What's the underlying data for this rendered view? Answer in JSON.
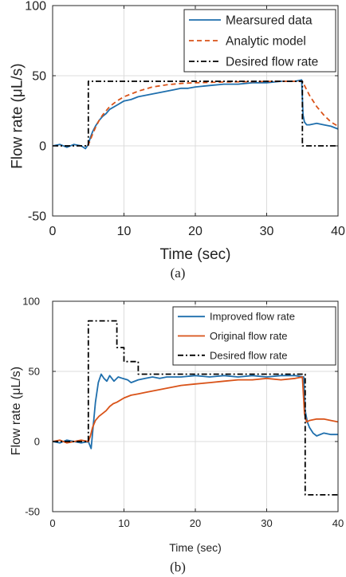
{
  "chart_data": [
    {
      "type": "line",
      "caption": "(a)",
      "xlabel": "Time (sec)",
      "ylabel": "Flow rate (μL/s)",
      "xlim": [
        0,
        40
      ],
      "ylim": [
        -50,
        100
      ],
      "xticks": [
        0,
        10,
        20,
        30,
        40
      ],
      "yticks": [
        -50,
        0,
        50,
        100
      ],
      "grid": true,
      "legend_position": "top-right",
      "series": [
        {
          "name": "Mearsured data",
          "color": "#1f6fad",
          "style": "solid",
          "x": [
            0,
            1,
            2,
            3,
            4,
            4.6,
            5,
            5.3,
            5.6,
            6,
            6.5,
            7,
            7.5,
            8,
            9,
            10,
            11,
            12,
            13,
            14,
            15,
            16,
            17,
            18,
            19,
            20,
            22,
            24,
            26,
            28,
            30,
            32,
            34,
            34.9,
            35.1,
            35.3,
            35.6,
            36,
            37,
            38,
            39,
            40
          ],
          "y": [
            0,
            1,
            -1,
            1,
            0,
            -2,
            1,
            6,
            10,
            14,
            18,
            21,
            23,
            26,
            29,
            32,
            33,
            35,
            36,
            37,
            38,
            39,
            40,
            41,
            41,
            42,
            43,
            44,
            44,
            45,
            45,
            46,
            46,
            47,
            22,
            17,
            15,
            15,
            16,
            15,
            14,
            12
          ]
        },
        {
          "name": "Analytic model",
          "color": "#d95319",
          "style": "dashed",
          "x": [
            4.9,
            5.2,
            5.5,
            6,
            6.5,
            7,
            8,
            9,
            10,
            11,
            12,
            14,
            16,
            18,
            20,
            24,
            28,
            32,
            35,
            35.5,
            36,
            37,
            38,
            39,
            40
          ],
          "y": [
            0,
            3,
            7,
            13,
            18,
            22,
            28,
            32,
            35,
            37,
            39,
            42,
            43.5,
            44.5,
            45,
            45.5,
            45.8,
            46,
            46,
            41,
            36,
            28,
            22,
            17,
            14
          ]
        },
        {
          "name": "Desired flow rate",
          "color": "#000000",
          "style": "dashdot",
          "x": [
            0,
            5,
            5,
            35,
            35,
            40
          ],
          "y": [
            0,
            0,
            46,
            46,
            0,
            0
          ]
        }
      ]
    },
    {
      "type": "line",
      "caption": "(b)",
      "xlabel": "Time (sec)",
      "ylabel": "Flow rate (μL/s)",
      "xlim": [
        0,
        40
      ],
      "ylim": [
        -50,
        100
      ],
      "xticks": [
        0,
        10,
        20,
        30,
        40
      ],
      "yticks": [
        -50,
        0,
        50,
        100
      ],
      "grid": true,
      "legend_position": "top-right",
      "series": [
        {
          "name": "Improved flow rate",
          "color": "#1f6fad",
          "style": "solid",
          "x": [
            0,
            1,
            2,
            3,
            4,
            5,
            5.4,
            5.6,
            6,
            6.4,
            6.8,
            7.2,
            7.6,
            8,
            8.6,
            9.2,
            9.8,
            10.5,
            11,
            12,
            13,
            14,
            15,
            16,
            18,
            20,
            22,
            24,
            26,
            28,
            30,
            32,
            34,
            35.2,
            35.4,
            35.7,
            36,
            36.5,
            37,
            38,
            39,
            40
          ],
          "y": [
            0,
            -1,
            1,
            0,
            -1,
            0,
            -5,
            6,
            28,
            42,
            48,
            45,
            43,
            47,
            43,
            46,
            45,
            44,
            42,
            44,
            45,
            46,
            45,
            46,
            46,
            47,
            46,
            47,
            46,
            47,
            46,
            47,
            47,
            46,
            22,
            14,
            10,
            6,
            4,
            6,
            5,
            5
          ]
        },
        {
          "name": "Original flow rate",
          "color": "#d95319",
          "style": "solid",
          "x": [
            0,
            1,
            2,
            3,
            4,
            5,
            5.3,
            5.6,
            6,
            6.5,
            7,
            7.5,
            8,
            8.5,
            9,
            10,
            11,
            12,
            13,
            14,
            15,
            16,
            17,
            18,
            20,
            22,
            24,
            26,
            28,
            30,
            32,
            34,
            35,
            35.3,
            35.6,
            36,
            37,
            38,
            39,
            40
          ],
          "y": [
            0,
            1,
            -1,
            0,
            1,
            0,
            4,
            10,
            15,
            18,
            20,
            22,
            25,
            27,
            28,
            31,
            33,
            34,
            35,
            36,
            37,
            38,
            39,
            40,
            41,
            42,
            43,
            44,
            44,
            45,
            44,
            45,
            46,
            20,
            14,
            15,
            16,
            16,
            15,
            14
          ]
        },
        {
          "name": "Desired flow rate",
          "color": "#000000",
          "style": "dashdot",
          "x": [
            0,
            5,
            5,
            9,
            9,
            10,
            10,
            12,
            12,
            35.4,
            35.4,
            40
          ],
          "y": [
            0,
            0,
            86,
            86,
            67,
            67,
            57,
            57,
            48,
            48,
            -38,
            -38
          ]
        }
      ]
    }
  ]
}
